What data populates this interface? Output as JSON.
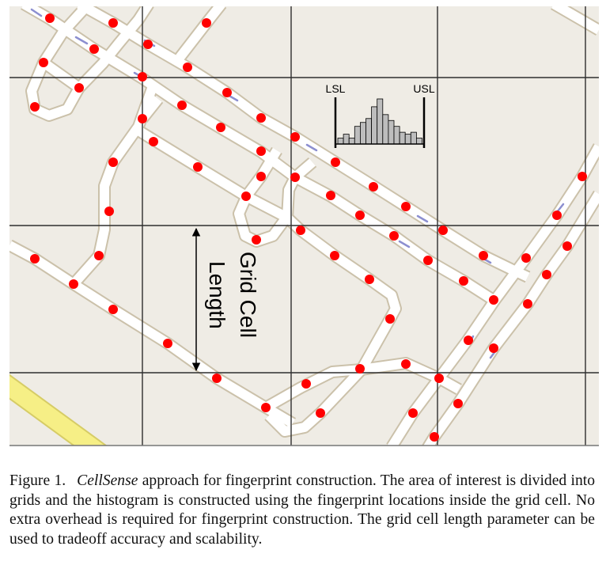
{
  "figure": {
    "map_colors": {
      "background": "#efece5",
      "road": "#ffffff",
      "road_edge": "#cbc1aa",
      "highway": "#f6ef86",
      "fingerprint_point": "#ff0000",
      "grid_line": "#2e2e2e",
      "direction_arrow": "#8c8fd0"
    },
    "histogram": {
      "lsl_label": "LSL",
      "usl_label": "USL",
      "bar_heights_relative": [
        3,
        5,
        3,
        9,
        11,
        13,
        19,
        23,
        15,
        12,
        9,
        6,
        5,
        6,
        3
      ]
    },
    "grid_cell_label_line1": "Grid Cell",
    "grid_cell_label_line2": "Length"
  },
  "caption": {
    "label": "Figure 1.",
    "emphasis": "CellSense",
    "text": " approach for fingerprint construction. The area of interest is divided into grids and the histogram is constructed using the fingerprint locations inside the grid cell. No extra overhead is required for fingerprint construction. The grid cell length parameter can be used to tradeoff accuracy and scalability."
  }
}
